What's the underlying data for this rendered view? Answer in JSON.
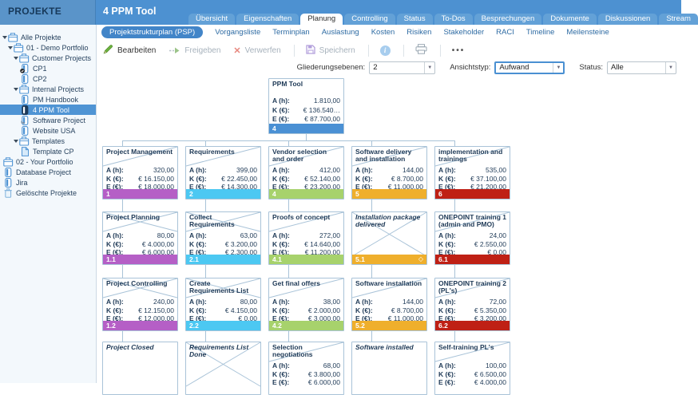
{
  "header": {
    "sidebar_title": "PROJEKTE",
    "page_title": "4 PPM Tool"
  },
  "tabs": {
    "items": [
      "Übersicht",
      "Eigenschaften",
      "Planung",
      "Controlling",
      "Status",
      "To-Dos",
      "Besprechungen",
      "Dokumente",
      "Diskussionen",
      "Stream"
    ],
    "active": "Planung"
  },
  "subtabs": {
    "items": [
      "Projektstrukturplan (PSP)",
      "Vorgangsliste",
      "Terminplan",
      "Auslastung",
      "Kosten",
      "Risiken",
      "Stakeholder",
      "RACI",
      "Timeline",
      "Meilensteine"
    ],
    "active": "Projektstrukturplan (PSP)"
  },
  "toolbar": {
    "edit": "Bearbeiten",
    "release": "Freigeben",
    "discard": "Verwerfen",
    "save": "Speichern",
    "more": "•••"
  },
  "filters": {
    "outline_label": "Gliederungsebenen:",
    "outline_value": "2",
    "viewtype_label": "Ansichtstyp:",
    "viewtype_value": "Aufwand",
    "status_label": "Status:",
    "status_value": "Alle"
  },
  "sidebar": {
    "items": [
      {
        "label": "Alle Projekte",
        "level": 0,
        "icon": "portfolio",
        "expanded": true
      },
      {
        "label": "01 - Demo Portfolio",
        "level": 1,
        "icon": "portfolio",
        "expanded": true
      },
      {
        "label": "Customer Projects",
        "level": 2,
        "icon": "portfolio",
        "expanded": true
      },
      {
        "label": "CP1",
        "level": 3,
        "icon": "project-locked"
      },
      {
        "label": "CP2",
        "level": 3,
        "icon": "project"
      },
      {
        "label": "Internal Projects",
        "level": 2,
        "icon": "portfolio",
        "expanded": true
      },
      {
        "label": "PM Handbook",
        "level": 3,
        "icon": "project"
      },
      {
        "label": "4 PPM Tool",
        "level": 3,
        "icon": "project",
        "selected": true
      },
      {
        "label": "Software Project",
        "level": 3,
        "icon": "project-linked"
      },
      {
        "label": "Website USA",
        "level": 3,
        "icon": "project"
      },
      {
        "label": "Templates",
        "level": 2,
        "icon": "portfolio",
        "expanded": true
      },
      {
        "label": "Template CP",
        "level": 3,
        "icon": "template"
      },
      {
        "label": "02 - Your Portfolio",
        "level": 0,
        "icon": "portfolio"
      },
      {
        "label": "Database Project",
        "level": 0,
        "icon": "project"
      },
      {
        "label": "Jira",
        "level": 0,
        "icon": "project"
      },
      {
        "label": "Gelöschte Projekte",
        "level": 0,
        "icon": "trash"
      }
    ]
  },
  "wbs": {
    "metric_labels": [
      "A (h):",
      "K (€):",
      "E (€):"
    ],
    "root": {
      "title": "PPM Tool",
      "code": "4",
      "color": "#4a90d4",
      "values": [
        "1.810,00",
        "€ 136.540…",
        "€ 87.700,00"
      ]
    },
    "columns": [
      {
        "color": "#b55fc6",
        "boxes": [
          {
            "title": "Project Management",
            "code": "1",
            "diagonal": "single",
            "values": [
              "320,00",
              "€ 16.150,00",
              "€ 18.000,00"
            ]
          },
          {
            "title": "Project Planning",
            "code": "1.1",
            "diagonal": "cross",
            "values": [
              "80,00",
              "€ 4.000,00",
              "€ 6.000,00"
            ]
          },
          {
            "title": "Project Controlling",
            "code": "1.2",
            "diagonal": "cross",
            "values": [
              "240,00",
              "€ 12.150,00",
              "€ 12.000,00"
            ]
          },
          {
            "title": "Project Closed",
            "italic": true,
            "diagonal": "none",
            "values": null
          }
        ]
      },
      {
        "color": "#4cc8f2",
        "boxes": [
          {
            "title": "Requirements",
            "code": "2",
            "diagonal": "single",
            "values": [
              "399,00",
              "€ 22.450,00",
              "€ 14.300,00"
            ]
          },
          {
            "title": "Collect Requirements",
            "code": "2.1",
            "diagonal": "cross",
            "values": [
              "63,00",
              "€ 3.200,00",
              "€ 2.300,00"
            ]
          },
          {
            "title": "Create Requirements List",
            "code": "2.2",
            "diagonal": "cross",
            "values": [
              "80,00",
              "€ 4.150,00",
              "€ 0,00"
            ]
          },
          {
            "title": "Requirements List Done",
            "italic": true,
            "diagonal": "cross",
            "values": null
          }
        ]
      },
      {
        "color": "#a7d26c",
        "boxes": [
          {
            "title": "Vendor selection and order",
            "code": "4",
            "diagonal": "single",
            "values": [
              "412,00",
              "€ 52.140,00",
              "€ 23.200,00"
            ]
          },
          {
            "title": "Proofs of concept",
            "code": "4.1",
            "diagonal": "single",
            "values": [
              "272,00",
              "€ 14.640,00",
              "€ 11.200,00"
            ]
          },
          {
            "title": "Get final offers",
            "code": "4.2",
            "diagonal": "single",
            "values": [
              "38,00",
              "€ 2.000,00",
              "€ 3.000,00"
            ]
          },
          {
            "title": "Selection negotiations",
            "diagonal": "single",
            "values": [
              "68,00",
              "€ 3.800,00",
              "€ 6.000,00"
            ]
          }
        ]
      },
      {
        "color": "#efaf2c",
        "boxes": [
          {
            "title": "Software delivery and installation",
            "code": "5",
            "diagonal": "single",
            "values": [
              "144,00",
              "€ 8.700,00",
              "€ 11.000,00"
            ]
          },
          {
            "title": "Installation package delivered",
            "code": "5.1",
            "italic": true,
            "diagonal": "cross",
            "milestone_diamond": true,
            "values": null
          },
          {
            "title": "Software installation",
            "code": "5.2",
            "diagonal": "single",
            "values": [
              "144,00",
              "€ 8.700,00",
              "€ 11.000,00"
            ]
          },
          {
            "title": "Software installed",
            "italic": true,
            "diagonal": "none",
            "values": null
          }
        ]
      },
      {
        "color": "#bf2015",
        "boxes": [
          {
            "title": "implementation and trainings",
            "code": "6",
            "diagonal": "single",
            "values": [
              "535,00",
              "€ 37.100,00",
              "€ 21.200,00"
            ]
          },
          {
            "title": "ONEPOINT training 1 (admin and PMO)",
            "code": "6.1",
            "diagonal": "single",
            "values": [
              "24,00",
              "€ 2.550,00",
              "€ 0,00"
            ]
          },
          {
            "title": "ONEPOINT training 2 (PL's)",
            "code": "6.2",
            "diagonal": "single",
            "values": [
              "72,00",
              "€ 5.350,00",
              "€ 3.200,00"
            ]
          },
          {
            "title": "Self-training PL's",
            "diagonal": "single",
            "values": [
              "100,00",
              "€ 6.500,00",
              "€ 4.000,00"
            ]
          }
        ]
      }
    ]
  }
}
